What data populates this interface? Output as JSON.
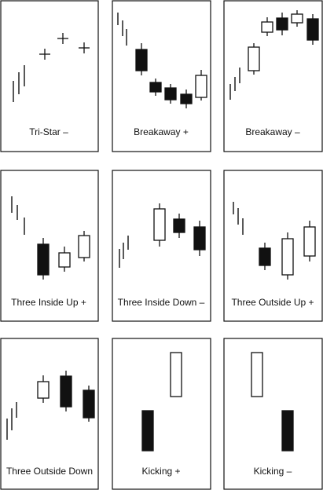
{
  "colors": {
    "ink": "#111111",
    "paper": "#ffffff"
  },
  "panels": [
    {
      "id": "tri-star",
      "label": "Tri-Star –",
      "lines": [
        [
          17,
          130,
          17,
          103
        ],
        [
          24,
          120,
          24,
          92
        ],
        [
          31,
          110,
          31,
          83
        ]
      ],
      "crosses": [
        [
          57,
          69
        ],
        [
          80,
          49
        ],
        [
          107,
          61
        ]
      ],
      "candles": []
    },
    {
      "id": "breakaway-bull",
      "label": "Breakaway +",
      "lines": [
        [
          150,
          32,
          150,
          16
        ],
        [
          156,
          46,
          156,
          26
        ],
        [
          161,
          58,
          161,
          37
        ]
      ],
      "crosses": [],
      "candles": [
        [
          180,
          55,
          96,
          63,
          90,
          "b"
        ],
        [
          198,
          100,
          122,
          105,
          117,
          "b"
        ],
        [
          217,
          107,
          132,
          112,
          127,
          "b"
        ],
        [
          237,
          114,
          138,
          120,
          132,
          "b"
        ],
        [
          256,
          89,
          128,
          96,
          124,
          "w"
        ]
      ]
    },
    {
      "id": "breakaway-bear",
      "label": "Breakaway  –",
      "lines": [
        [
          293,
          127,
          293,
          107
        ],
        [
          299,
          116,
          299,
          98
        ],
        [
          305,
          106,
          305,
          86
        ]
      ],
      "crosses": [],
      "candles": [
        [
          323,
          55,
          95,
          60,
          90,
          "w"
        ],
        [
          340,
          22,
          46,
          28,
          41,
          "w"
        ],
        [
          359,
          16,
          45,
          23,
          38,
          "b"
        ],
        [
          378,
          13,
          34,
          18,
          29,
          "w"
        ],
        [
          398,
          18,
          57,
          24,
          51,
          "b"
        ]
      ]
    },
    {
      "id": "three-inside-up",
      "label": "Three Inside Up +",
      "lines": [
        [
          15,
          271,
          15,
          250
        ],
        [
          22,
          280,
          22,
          261
        ],
        [
          31,
          299,
          31,
          277
        ]
      ],
      "crosses": [],
      "candles": [
        [
          55,
          303,
          356,
          311,
          350,
          "b"
        ],
        [
          82,
          314,
          346,
          322,
          340,
          "w"
        ],
        [
          107,
          294,
          333,
          300,
          328,
          "w"
        ]
      ]
    },
    {
      "id": "three-inside-down",
      "label": "Three Inside Down –",
      "lines": [
        [
          152,
          341,
          152,
          317
        ],
        [
          157,
          330,
          157,
          309
        ],
        [
          163,
          318,
          163,
          300
        ]
      ],
      "crosses": [],
      "candles": [
        [
          203,
          259,
          314,
          266,
          306,
          "w"
        ],
        [
          228,
          272,
          303,
          279,
          296,
          "b"
        ],
        [
          254,
          281,
          326,
          289,
          318,
          "b"
        ]
      ]
    },
    {
      "id": "three-outside-up",
      "label": "Three Outside Up +",
      "lines": [
        [
          297,
          273,
          297,
          257
        ],
        [
          303,
          286,
          303,
          265
        ],
        [
          309,
          299,
          309,
          278
        ]
      ],
      "crosses": [],
      "candles": [
        [
          337,
          309,
          344,
          316,
          338,
          "b"
        ],
        [
          366,
          296,
          356,
          304,
          350,
          "w"
        ],
        [
          394,
          281,
          333,
          289,
          326,
          "w"
        ]
      ]
    },
    {
      "id": "three-outside-down",
      "label": "Three Outside Down",
      "lines": [
        [
          9,
          560,
          9,
          533
        ],
        [
          15,
          548,
          15,
          520
        ],
        [
          21,
          532,
          21,
          512
        ]
      ],
      "crosses": [],
      "candles": [
        [
          55,
          478,
          513,
          486,
          507,
          "w"
        ],
        [
          84,
          472,
          524,
          479,
          518,
          "b"
        ],
        [
          113,
          491,
          537,
          497,
          532,
          "b"
        ]
      ]
    },
    {
      "id": "kicking-bull",
      "label": "Kicking +",
      "lines": [],
      "crosses": [],
      "candles": [
        [
          188,
          523,
          574,
          523,
          574,
          "b"
        ],
        [
          224,
          449,
          505,
          449,
          505,
          "w"
        ]
      ]
    },
    {
      "id": "kicking-bear",
      "label": "Kicking  –",
      "lines": [],
      "crosses": [],
      "candles": [
        [
          327,
          449,
          505,
          449,
          505,
          "w"
        ],
        [
          366,
          523,
          574,
          523,
          574,
          "b"
        ]
      ]
    }
  ]
}
